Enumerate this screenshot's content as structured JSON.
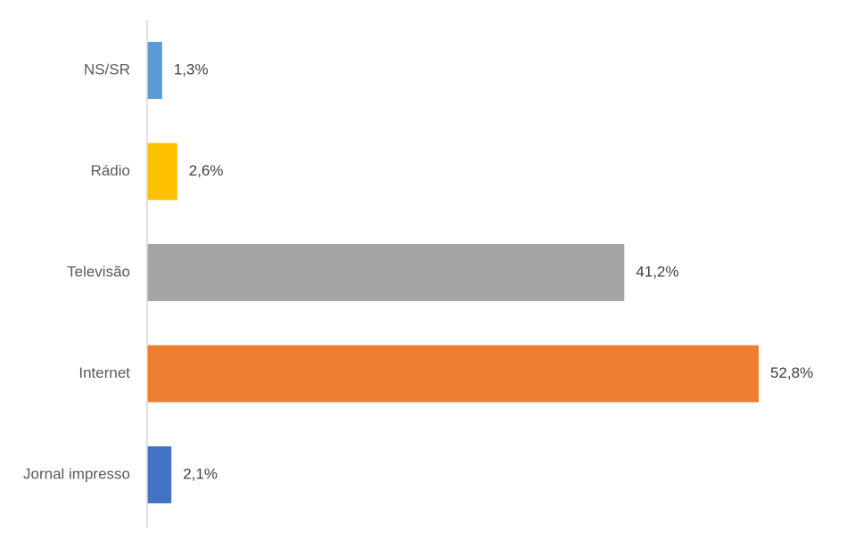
{
  "chart_data": {
    "type": "bar",
    "orientation": "horizontal",
    "categories": [
      "NS/SR",
      "Rádio",
      "Televisão",
      "Internet",
      "Jornal impresso"
    ],
    "values": [
      1.3,
      2.6,
      41.2,
      52.8,
      2.1
    ],
    "value_labels": [
      "1,3%",
      "2,6%",
      "41,2%",
      "52,8%",
      "2,1%"
    ],
    "colors": [
      "#5B9BD5",
      "#FFC000",
      "#A5A5A5",
      "#ED7D31",
      "#4472C4"
    ],
    "unit": "%",
    "xlim": [
      0,
      55
    ],
    "grid": false,
    "legend": "none"
  }
}
